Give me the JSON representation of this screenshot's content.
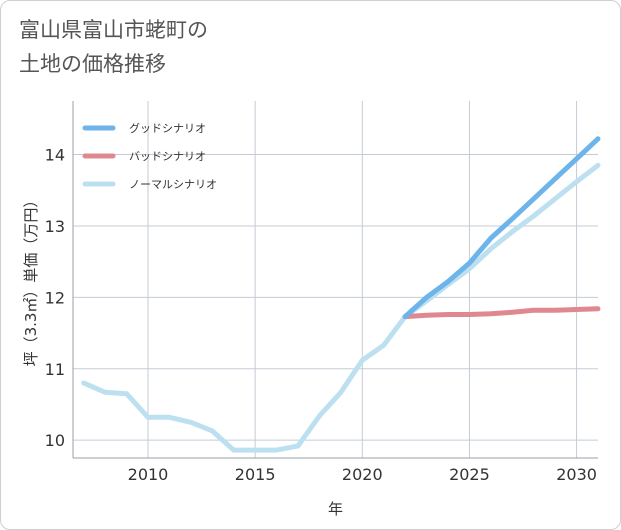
{
  "title_lines": [
    "富山県富山市蛯町の",
    "土地の価格推移"
  ],
  "colors": {
    "good": "#6cb4ea",
    "bad": "#e08890",
    "normal": "#bde0f1",
    "grid": "#c5cbd6"
  },
  "chart_data": {
    "type": "line",
    "title": "富山県富山市蛯町の土地の価格推移",
    "xlabel": "年",
    "ylabel": "坪（3.3㎡）単価（万円）",
    "xlim": [
      2006.5,
      2031
    ],
    "ylim": [
      9.75,
      14.75
    ],
    "xticks": [
      2010,
      2015,
      2020,
      2025,
      2030
    ],
    "yticks": [
      10,
      11,
      12,
      13,
      14
    ],
    "grid": true,
    "legend_position": "top-left",
    "series": [
      {
        "key": "good",
        "name": "グッドシナリオ",
        "x": [
          2022,
          2023,
          2024,
          2025,
          2026,
          2027,
          2028,
          2029,
          2030,
          2031
        ],
        "values": [
          11.73,
          12.0,
          12.22,
          12.48,
          12.83,
          13.1,
          13.38,
          13.66,
          13.94,
          14.22
        ]
      },
      {
        "key": "bad",
        "name": "バッドシナリオ",
        "x": [
          2022,
          2023,
          2024,
          2025,
          2026,
          2027,
          2028,
          2029,
          2030,
          2031
        ],
        "values": [
          11.73,
          11.75,
          11.76,
          11.76,
          11.77,
          11.79,
          11.82,
          11.82,
          11.83,
          11.84
        ]
      },
      {
        "key": "normal",
        "name": "ノーマルシナリオ",
        "x": [
          2007,
          2008,
          2009,
          2010,
          2011,
          2012,
          2013,
          2014,
          2015,
          2016,
          2017,
          2018,
          2019,
          2020,
          2021,
          2022,
          2023,
          2024,
          2025,
          2026,
          2027,
          2028,
          2029,
          2030,
          2031
        ],
        "values": [
          10.8,
          10.67,
          10.65,
          10.32,
          10.32,
          10.25,
          10.13,
          9.86,
          9.86,
          9.86,
          9.92,
          10.34,
          10.67,
          11.12,
          11.33,
          11.73,
          11.95,
          12.18,
          12.4,
          12.68,
          12.92,
          13.14,
          13.38,
          13.62,
          13.85
        ]
      }
    ]
  }
}
